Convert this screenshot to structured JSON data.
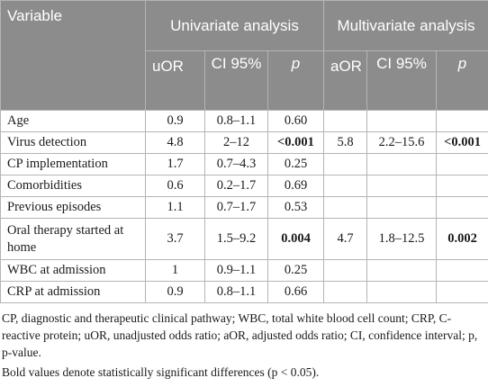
{
  "header": {
    "variable": "Variable",
    "univariate": "Univariate analysis",
    "multivariate": "Multivariate analysis",
    "uor": "uOR",
    "ci_u": "CI 95%",
    "p_u": "p",
    "aor": "aOR",
    "ci_m": "CI 95%",
    "p_m": "p"
  },
  "rows": [
    {
      "variable": "Age",
      "uor": "0.9",
      "ci_u": "0.8–1.1",
      "p_u": "0.60",
      "aor": "",
      "ci_m": "",
      "p_m": ""
    },
    {
      "variable": "Virus detection",
      "uor": "4.8",
      "ci_u": "2–12",
      "p_u": "<0.001",
      "aor": "5.8",
      "ci_m": "2.2–15.6",
      "p_m": "<0.001"
    },
    {
      "variable": "CP implementation",
      "uor": "1.7",
      "ci_u": "0.7–4.3",
      "p_u": "0.25",
      "aor": "",
      "ci_m": "",
      "p_m": ""
    },
    {
      "variable": "Comorbidities",
      "uor": "0.6",
      "ci_u": "0.2–1.7",
      "p_u": "0.69",
      "aor": "",
      "ci_m": "",
      "p_m": ""
    },
    {
      "variable": "Previous episodes",
      "uor": "1.1",
      "ci_u": "0.7–1.7",
      "p_u": "0.53",
      "aor": "",
      "ci_m": "",
      "p_m": ""
    },
    {
      "variable": "Oral therapy started at home",
      "uor": "3.7",
      "ci_u": "1.5–9.2",
      "p_u": "0.004",
      "aor": "4.7",
      "ci_m": "1.8–12.5",
      "p_m": "0.002"
    },
    {
      "variable": "WBC at admission",
      "uor": "1",
      "ci_u": "0.9–1.1",
      "p_u": "0.25",
      "aor": "",
      "ci_m": "",
      "p_m": ""
    },
    {
      "variable": "CRP at admission",
      "uor": "0.9",
      "ci_u": "0.8–1.1",
      "p_u": "0.66",
      "aor": "",
      "ci_m": "",
      "p_m": ""
    }
  ],
  "footnotes": {
    "abbreviations": "CP, diagnostic and therapeutic clinical pathway; WBC, total white blood cell count; CRP, C-reactive protein; uOR, unadjusted odds ratio; aOR, adjusted odds ratio; CI, confidence interval; p, p-value.",
    "bold_note": "Bold values denote statistically significant differences (p < 0.05)."
  }
}
